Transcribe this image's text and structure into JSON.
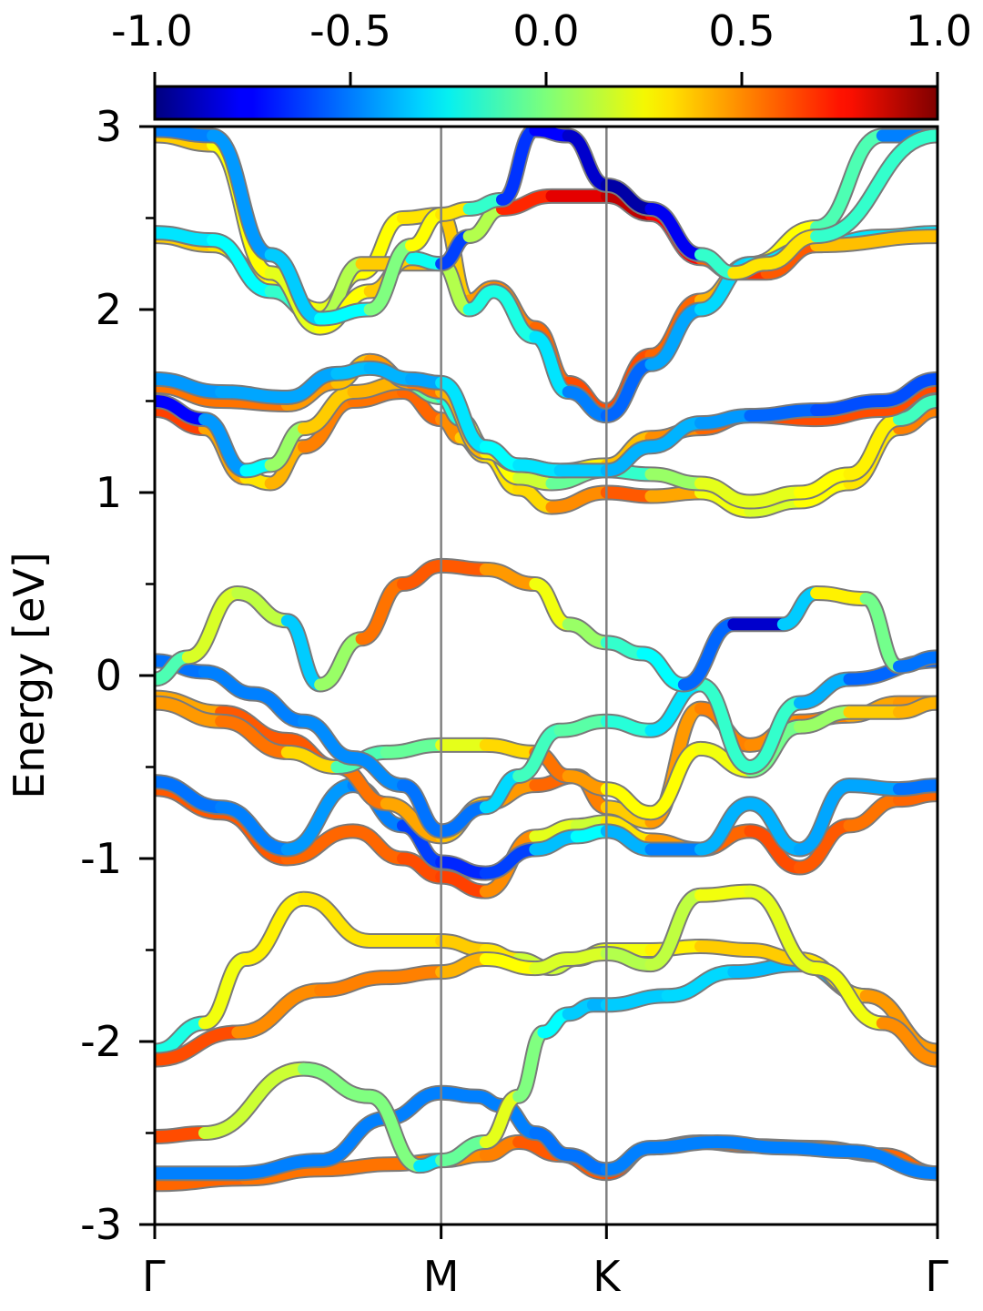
{
  "chart_data": {
    "type": "line",
    "ylabel": "Energy [eV]",
    "xlabel": "",
    "title": "",
    "ylim": [
      -3,
      3
    ],
    "xlim": [
      0,
      4.734
    ],
    "grid": false,
    "legend": "none",
    "x_ticks": [
      {
        "label": "Γ",
        "pos": 0
      },
      {
        "label": "M",
        "pos": 1.732
      },
      {
        "label": "K",
        "pos": 2.732
      },
      {
        "label": "Γ",
        "pos": 4.734
      }
    ],
    "y_ticks": [
      {
        "label": "3",
        "value": 3
      },
      {
        "label": "2",
        "value": 2
      },
      {
        "label": "1",
        "value": 1
      },
      {
        "label": "0",
        "value": 0
      },
      {
        "label": "-1",
        "value": -1
      },
      {
        "label": "-2",
        "value": -2
      },
      {
        "label": "-3",
        "value": -3
      }
    ],
    "y_minor_ticks": [
      2.5,
      1.5,
      0.5,
      -0.5,
      -1.5,
      -2.5
    ],
    "colorbar": {
      "colormap": "jet",
      "range": [
        -1.0,
        1.0
      ],
      "ticks": [
        {
          "label": "-1.0",
          "value": -1.0
        },
        {
          "label": "-0.5",
          "value": -0.5
        },
        {
          "label": "0.0",
          "value": 0.0
        },
        {
          "label": "0.5",
          "value": 0.5
        },
        {
          "label": "1.0",
          "value": 1.0
        }
      ]
    },
    "series": [
      {
        "x": [
          0,
          0.55,
          1.0,
          1.45,
          1.732,
          2.0,
          2.2,
          2.45,
          2.732,
          3.0,
          3.3,
          3.6,
          4.0,
          4.4,
          4.734
        ],
        "y": [
          -2.78,
          -2.75,
          -2.7,
          -2.67,
          -2.65,
          -2.62,
          -2.55,
          -2.62,
          -2.72,
          -2.58,
          -2.55,
          -2.57,
          -2.58,
          -2.62,
          -2.72
        ],
        "c": [
          0.6,
          0.5,
          0.55,
          0.5,
          0.55,
          0.4,
          0.6,
          0.55,
          0.6,
          0.6,
          0.6,
          0.5,
          0.5,
          0.5,
          0.6
        ]
      },
      {
        "x": [
          0,
          0.5,
          1.0,
          1.4,
          1.732,
          1.95,
          2.1,
          2.3,
          2.5,
          2.732,
          3.0,
          3.4,
          3.8,
          4.2,
          4.734
        ],
        "y": [
          -2.72,
          -2.72,
          -2.65,
          -2.42,
          -2.28,
          -2.3,
          -2.35,
          -2.5,
          -2.62,
          -2.7,
          -2.58,
          -2.55,
          -2.58,
          -2.6,
          -2.72
        ],
        "c": [
          -0.5,
          -0.5,
          -0.5,
          -0.5,
          -0.5,
          -0.5,
          -0.5,
          -0.5,
          -0.55,
          -0.5,
          -0.5,
          -0.5,
          -0.5,
          -0.5,
          -0.5
        ]
      },
      {
        "x": [
          0,
          0.3,
          0.9,
          1.3,
          1.6,
          1.732,
          2.0,
          2.2,
          2.35,
          2.5,
          2.65,
          2.732,
          3.1,
          3.5,
          3.9,
          4.3,
          4.734
        ],
        "y": [
          -2.52,
          -2.5,
          -2.15,
          -2.3,
          -2.68,
          -2.65,
          -2.55,
          -2.3,
          -1.95,
          -1.85,
          -1.8,
          -1.8,
          -1.75,
          -1.62,
          -1.58,
          -1.75,
          -2.05
        ],
        "c": [
          0.6,
          0.6,
          -0.3,
          0.3,
          -0.3,
          -0.3,
          0.2,
          0.2,
          -0.2,
          -0.3,
          -0.4,
          -0.4,
          -0.3,
          -0.35,
          -0.4,
          -0.4,
          -0.5
        ]
      },
      {
        "x": [
          0,
          0.3,
          0.55,
          0.9,
          1.3,
          1.732,
          2.0,
          2.2,
          2.4,
          2.55,
          2.732,
          3.0,
          3.3,
          3.6,
          3.9,
          4.3,
          4.734
        ],
        "y": [
          -2.05,
          -1.9,
          -1.55,
          -1.22,
          -1.45,
          -1.45,
          -1.5,
          -1.55,
          -1.6,
          -1.55,
          -1.5,
          -1.5,
          -1.48,
          -1.5,
          -1.55,
          -1.75,
          -2.05
        ],
        "c": [
          -0.6,
          0.2,
          0.25,
          0.3,
          0.3,
          0.3,
          0.4,
          0.2,
          0.1,
          0.2,
          0.2,
          0.25,
          0.3,
          0.4,
          0.3,
          0.3,
          0.6
        ]
      },
      {
        "x": [
          0,
          0.5,
          1.0,
          1.4,
          1.732,
          2.0,
          2.3,
          2.5,
          2.732,
          3.0,
          3.3,
          3.6,
          4.0,
          4.4,
          4.734
        ],
        "y": [
          -2.1,
          -1.95,
          -1.72,
          -1.65,
          -1.62,
          -1.55,
          -1.6,
          -1.55,
          -1.52,
          -1.58,
          -1.2,
          -1.18,
          -1.6,
          -1.9,
          -2.1
        ],
        "c": [
          0.75,
          0.45,
          0.5,
          0.5,
          0.5,
          0.3,
          0.2,
          0.15,
          0.2,
          0.0,
          0.25,
          0.2,
          0.2,
          0.25,
          0.7
        ]
      },
      {
        "x": [
          0,
          0.4,
          0.8,
          1.2,
          1.5,
          1.732,
          2.0,
          2.3,
          2.55,
          2.732,
          3.0,
          3.3,
          3.6,
          3.9,
          4.2,
          4.5,
          4.734
        ],
        "y": [
          -0.62,
          -0.75,
          -1.0,
          -0.85,
          -1.0,
          -1.1,
          -1.18,
          -0.88,
          -0.82,
          -0.8,
          -0.9,
          -0.95,
          -0.85,
          -1.05,
          -0.82,
          -0.68,
          -0.65
        ],
        "c": [
          0.6,
          0.55,
          0.6,
          0.5,
          0.6,
          0.6,
          0.65,
          0.3,
          0.1,
          0.2,
          0.4,
          0.5,
          0.6,
          0.6,
          0.55,
          0.5,
          0.6
        ]
      },
      {
        "x": [
          0,
          0.4,
          0.8,
          1.2,
          1.5,
          1.732,
          2.0,
          2.3,
          2.55,
          2.732,
          3.0,
          3.3,
          3.6,
          3.9,
          4.2,
          4.5,
          4.734
        ],
        "y": [
          -0.58,
          -0.72,
          -0.95,
          -0.6,
          -0.82,
          -1.02,
          -1.08,
          -0.95,
          -0.88,
          -0.85,
          -0.95,
          -0.95,
          -0.7,
          -0.95,
          -0.6,
          -0.62,
          -0.6
        ],
        "c": [
          -0.55,
          -0.5,
          -0.5,
          -0.4,
          -0.6,
          -0.65,
          -0.7,
          -0.55,
          -0.2,
          -0.3,
          -0.5,
          -0.5,
          -0.3,
          -0.5,
          -0.35,
          -0.5,
          -0.55
        ]
      },
      {
        "x": [
          0,
          0.4,
          0.8,
          1.1,
          1.4,
          1.732,
          2.0,
          2.3,
          2.55,
          2.732,
          3.0,
          3.3,
          3.6,
          3.9,
          4.2,
          4.5,
          4.734
        ],
        "y": [
          -0.12,
          -0.2,
          -0.35,
          -0.5,
          -0.7,
          -0.88,
          -0.7,
          -0.6,
          -0.55,
          -0.72,
          -0.8,
          -0.18,
          -0.38,
          -0.25,
          -0.22,
          -0.15,
          -0.15
        ],
        "c": [
          0.3,
          0.55,
          0.6,
          0.55,
          0.5,
          0.35,
          0.4,
          0.5,
          0.6,
          0.4,
          0.3,
          0.6,
          0.4,
          0.55,
          0.45,
          0.4,
          0.5
        ]
      },
      {
        "x": [
          0,
          0.4,
          0.8,
          1.1,
          1.4,
          1.732,
          2.0,
          2.3,
          2.5,
          2.732,
          3.0,
          3.3,
          3.6,
          3.9,
          4.2,
          4.5,
          4.734
        ],
        "y": [
          -0.15,
          -0.25,
          -0.42,
          -0.5,
          -0.42,
          -0.38,
          -0.38,
          -0.42,
          -0.55,
          -0.62,
          -0.75,
          -0.4,
          -0.52,
          -0.28,
          -0.2,
          -0.2,
          -0.15
        ],
        "c": [
          0.4,
          0.5,
          0.55,
          0.1,
          -0.3,
          0.2,
          0.2,
          0.45,
          0.6,
          0.3,
          0.2,
          0.3,
          0.15,
          -0.2,
          0.3,
          0.4,
          0.4
        ]
      },
      {
        "x": [
          0,
          0.3,
          0.6,
          0.9,
          1.2,
          1.5,
          1.732,
          2.0,
          2.2,
          2.45,
          2.732,
          3.0,
          3.3,
          3.6,
          3.9,
          4.2,
          4.734
        ],
        "y": [
          0.08,
          0.02,
          -0.1,
          -0.25,
          -0.45,
          -0.6,
          -0.85,
          -0.72,
          -0.55,
          -0.3,
          -0.25,
          -0.3,
          -0.05,
          -0.5,
          -0.15,
          -0.02,
          0.08
        ],
        "c": [
          -0.55,
          -0.5,
          -0.5,
          -0.5,
          -0.45,
          -0.5,
          -0.55,
          -0.5,
          -0.15,
          -0.1,
          -0.05,
          -0.3,
          -0.3,
          0.0,
          -0.3,
          -0.5,
          -0.6
        ]
      },
      {
        "x": [
          0,
          0.2,
          0.5,
          0.8,
          1.0,
          1.25,
          1.5,
          1.732,
          2.0,
          2.3,
          2.5,
          2.732,
          2.95,
          3.2,
          3.5,
          3.8,
          4.0,
          4.3,
          4.5,
          4.734
        ],
        "y": [
          -0.02,
          0.1,
          0.45,
          0.3,
          -0.05,
          0.2,
          0.5,
          0.6,
          0.58,
          0.5,
          0.28,
          0.18,
          0.12,
          -0.05,
          0.28,
          0.28,
          0.45,
          0.42,
          0.05,
          0.1
        ],
        "c": [
          0.0,
          -0.2,
          0.55,
          -0.3,
          -0.4,
          0.5,
          0.55,
          0.6,
          0.55,
          0.35,
          0.1,
          0.0,
          -0.3,
          -0.2,
          -0.9,
          -0.8,
          0.1,
          0.45,
          -0.5,
          -0.55
        ]
      },
      {
        "x": [
          0,
          0.3,
          0.55,
          0.7,
          0.9,
          1.2,
          1.5,
          1.732,
          1.85,
          2.0,
          2.2,
          2.4,
          2.732,
          3.0,
          3.3,
          3.6,
          3.9,
          4.2,
          4.5,
          4.734
        ],
        "y": [
          1.45,
          1.35,
          1.08,
          1.05,
          1.25,
          1.5,
          1.55,
          1.4,
          1.3,
          1.2,
          1.02,
          0.92,
          1.0,
          0.98,
          1.0,
          0.9,
          0.95,
          1.05,
          1.35,
          1.45
        ],
        "c": [
          0.7,
          0.55,
          0.3,
          0.3,
          0.5,
          0.5,
          0.55,
          0.55,
          0.4,
          0.3,
          0.3,
          0.35,
          0.6,
          0.55,
          0.3,
          0.15,
          0.2,
          0.3,
          0.3,
          0.7
        ]
      },
      {
        "x": [
          0,
          0.3,
          0.55,
          0.7,
          0.9,
          1.2,
          1.5,
          1.732,
          1.85,
          2.0,
          2.2,
          2.4,
          2.732,
          3.0,
          3.3,
          3.6,
          3.9,
          4.2,
          4.5,
          4.734
        ],
        "y": [
          1.5,
          1.4,
          1.12,
          1.15,
          1.35,
          1.55,
          1.6,
          1.52,
          1.4,
          1.25,
          1.08,
          1.05,
          1.12,
          1.1,
          1.05,
          0.95,
          1.0,
          1.1,
          1.4,
          1.5
        ],
        "c": [
          -0.9,
          -0.6,
          -0.3,
          -0.2,
          0.3,
          0.4,
          0.4,
          -0.5,
          0.1,
          0.3,
          0.2,
          0.1,
          -0.2,
          -0.1,
          0.2,
          0.2,
          0.2,
          0.3,
          0.25,
          -0.5
        ]
      },
      {
        "x": [
          0,
          0.4,
          0.8,
          1.1,
          1.3,
          1.55,
          1.732,
          2.0,
          2.2,
          2.45,
          2.732,
          3.0,
          3.3,
          3.6,
          4.0,
          4.4,
          4.734
        ],
        "y": [
          1.58,
          1.5,
          1.48,
          1.6,
          1.72,
          1.6,
          1.55,
          1.22,
          1.15,
          1.12,
          1.15,
          1.3,
          1.35,
          1.42,
          1.4,
          1.45,
          1.58
        ],
        "c": [
          0.55,
          0.5,
          0.55,
          0.35,
          0.4,
          0.5,
          0.55,
          0.25,
          0.3,
          0.25,
          0.3,
          0.45,
          0.5,
          0.6,
          0.6,
          0.6,
          0.6
        ]
      },
      {
        "x": [
          0,
          0.4,
          0.8,
          1.1,
          1.3,
          1.55,
          1.732,
          2.0,
          2.2,
          2.45,
          2.732,
          3.0,
          3.3,
          3.6,
          4.0,
          4.4,
          4.734
        ],
        "y": [
          1.62,
          1.55,
          1.52,
          1.65,
          1.68,
          1.62,
          1.6,
          1.25,
          1.15,
          1.12,
          1.12,
          1.25,
          1.38,
          1.42,
          1.45,
          1.5,
          1.62
        ],
        "c": [
          -0.5,
          -0.4,
          -0.45,
          -0.4,
          -0.35,
          -0.45,
          -0.4,
          -0.2,
          -0.3,
          -0.3,
          -0.4,
          -0.4,
          -0.4,
          -0.5,
          -0.6,
          -0.6,
          -0.6
        ]
      },
      {
        "x": [
          0,
          0.35,
          0.7,
          1.0,
          1.25,
          1.5,
          1.732,
          1.9,
          2.05,
          2.3,
          2.5,
          2.732,
          3.0,
          3.3,
          3.6,
          4.0,
          4.4,
          4.734
        ],
        "y": [
          2.4,
          2.35,
          2.15,
          2.0,
          2.2,
          2.5,
          2.52,
          2.05,
          2.12,
          1.9,
          1.6,
          1.45,
          1.75,
          2.05,
          2.25,
          2.45,
          2.95,
          2.95
        ],
        "c": [
          0.4,
          0.3,
          0.3,
          0.2,
          0.2,
          0.3,
          0.3,
          0.4,
          0.5,
          0.5,
          0.6,
          0.6,
          0.6,
          0.5,
          0.3,
          0.2,
          -0.4,
          -0.6
        ]
      },
      {
        "x": [
          0,
          0.35,
          0.7,
          1.0,
          1.25,
          1.5,
          1.732,
          1.9,
          2.05,
          2.3,
          2.5,
          2.732,
          3.0,
          3.3,
          3.6,
          4.0,
          4.4,
          4.734
        ],
        "y": [
          2.42,
          2.38,
          2.1,
          1.95,
          2.25,
          2.25,
          2.25,
          2.0,
          2.1,
          1.85,
          1.55,
          1.42,
          1.7,
          2.0,
          2.25,
          2.35,
          2.4,
          2.42
        ],
        "c": [
          -0.3,
          -0.3,
          -0.2,
          -0.1,
          0.3,
          0.4,
          0.4,
          -0.2,
          -0.2,
          -0.2,
          -0.4,
          -0.6,
          -0.5,
          -0.35,
          -0.3,
          -0.3,
          -0.3,
          -0.3
        ]
      },
      {
        "x": [
          0,
          0.35,
          0.7,
          1.0,
          1.3,
          1.55,
          1.732,
          1.9,
          2.1,
          2.4,
          2.732,
          3.0,
          3.3,
          3.5,
          3.7,
          4.0,
          4.734
        ],
        "y": [
          2.95,
          2.9,
          2.2,
          1.9,
          2.1,
          2.28,
          2.25,
          2.4,
          2.55,
          2.62,
          2.62,
          2.52,
          2.28,
          2.2,
          2.2,
          2.35,
          2.4
        ],
        "c": [
          0.4,
          0.3,
          0.2,
          0.2,
          0.3,
          0.4,
          -0.85,
          -0.4,
          0.6,
          0.75,
          0.85,
          0.9,
          0.6,
          0.5,
          0.8,
          0.35,
          0.4
        ]
      },
      {
        "x": [
          0,
          0.35,
          0.7,
          1.0,
          1.3,
          1.55,
          1.732,
          1.9,
          2.1,
          2.3,
          2.5,
          2.732,
          3.0,
          3.3,
          3.5,
          3.7,
          4.0,
          4.734
        ],
        "y": [
          2.98,
          2.95,
          2.3,
          1.95,
          2.0,
          2.35,
          2.52,
          2.55,
          2.6,
          2.98,
          2.95,
          2.68,
          2.55,
          2.3,
          2.2,
          2.25,
          2.4,
          2.95
        ],
        "c": [
          -0.5,
          -0.5,
          -0.4,
          -0.3,
          -0.2,
          0.2,
          0.3,
          0.3,
          -0.6,
          -0.7,
          -0.8,
          -0.9,
          -0.95,
          -0.6,
          0.3,
          0.3,
          0.3,
          -0.6
        ]
      }
    ]
  }
}
